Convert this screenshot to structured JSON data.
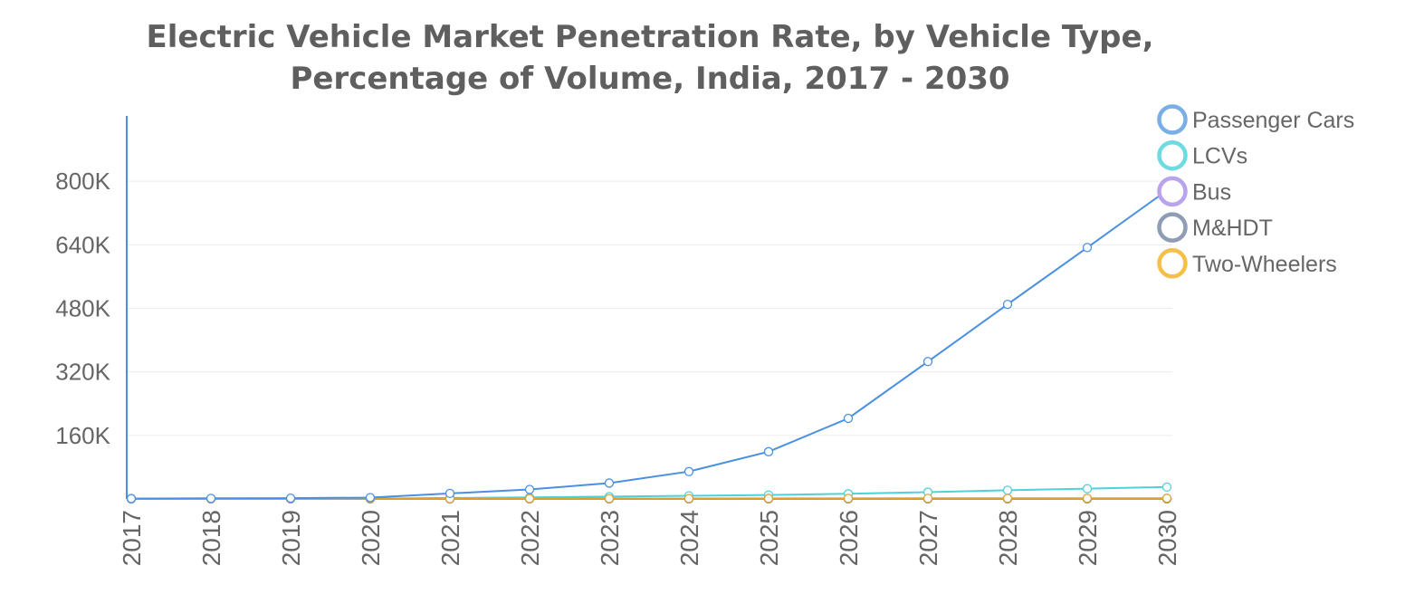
{
  "chart_data": {
    "type": "line",
    "title_lines": [
      "Electric Vehicle Market Penetration Rate, by Vehicle Type,",
      "Percentage of Volume, India, 2017 - 2030"
    ],
    "xlabel": "",
    "ylabel": "",
    "x": [
      "2017",
      "2018",
      "2019",
      "2020",
      "2021",
      "2022",
      "2023",
      "2024",
      "2025",
      "2026",
      "2027",
      "2028",
      "2029",
      "2030"
    ],
    "ylim": [
      0,
      960000
    ],
    "yticks": [
      {
        "value": 160000,
        "label": "160K"
      },
      {
        "value": 320000,
        "label": "320K"
      },
      {
        "value": 480000,
        "label": "480K"
      },
      {
        "value": 640000,
        "label": "640K"
      },
      {
        "value": 800000,
        "label": "800K"
      }
    ],
    "grid": true,
    "legend_position": "top-right",
    "series": [
      {
        "name": "Passenger Cars",
        "color": "#4a90e2",
        "legend_color": "#7aaee6",
        "values": [
          1000,
          1500,
          2000,
          3500,
          14000,
          24000,
          40000,
          69000,
          119000,
          203000,
          346000,
          490000,
          633000,
          777000
        ]
      },
      {
        "name": "LCVs",
        "color": "#4fd1d9",
        "legend_color": "#6ddbe0",
        "values": [
          300,
          500,
          700,
          1000,
          2500,
          4000,
          6000,
          8000,
          10000,
          13000,
          17000,
          22000,
          26000,
          30000
        ]
      },
      {
        "name": "Bus",
        "color": "#b39ddb",
        "legend_color": "#b8a3ec",
        "values": [
          50,
          60,
          70,
          80,
          100,
          120,
          150,
          180,
          200,
          250,
          300,
          350,
          400,
          450
        ]
      },
      {
        "name": "M&HDT",
        "color": "#8c9bb3",
        "legend_color": "#8e9cb4",
        "values": [
          20,
          25,
          30,
          35,
          40,
          50,
          60,
          70,
          80,
          90,
          100,
          110,
          120,
          130
        ]
      },
      {
        "name": "Two-Wheelers",
        "color": "#e0a030",
        "legend_color": "#f5bf4a",
        "values": [
          500,
          600,
          700,
          800,
          900,
          1000,
          1100,
          1200,
          1300,
          1400,
          1500,
          1600,
          1700,
          1800
        ]
      }
    ]
  }
}
